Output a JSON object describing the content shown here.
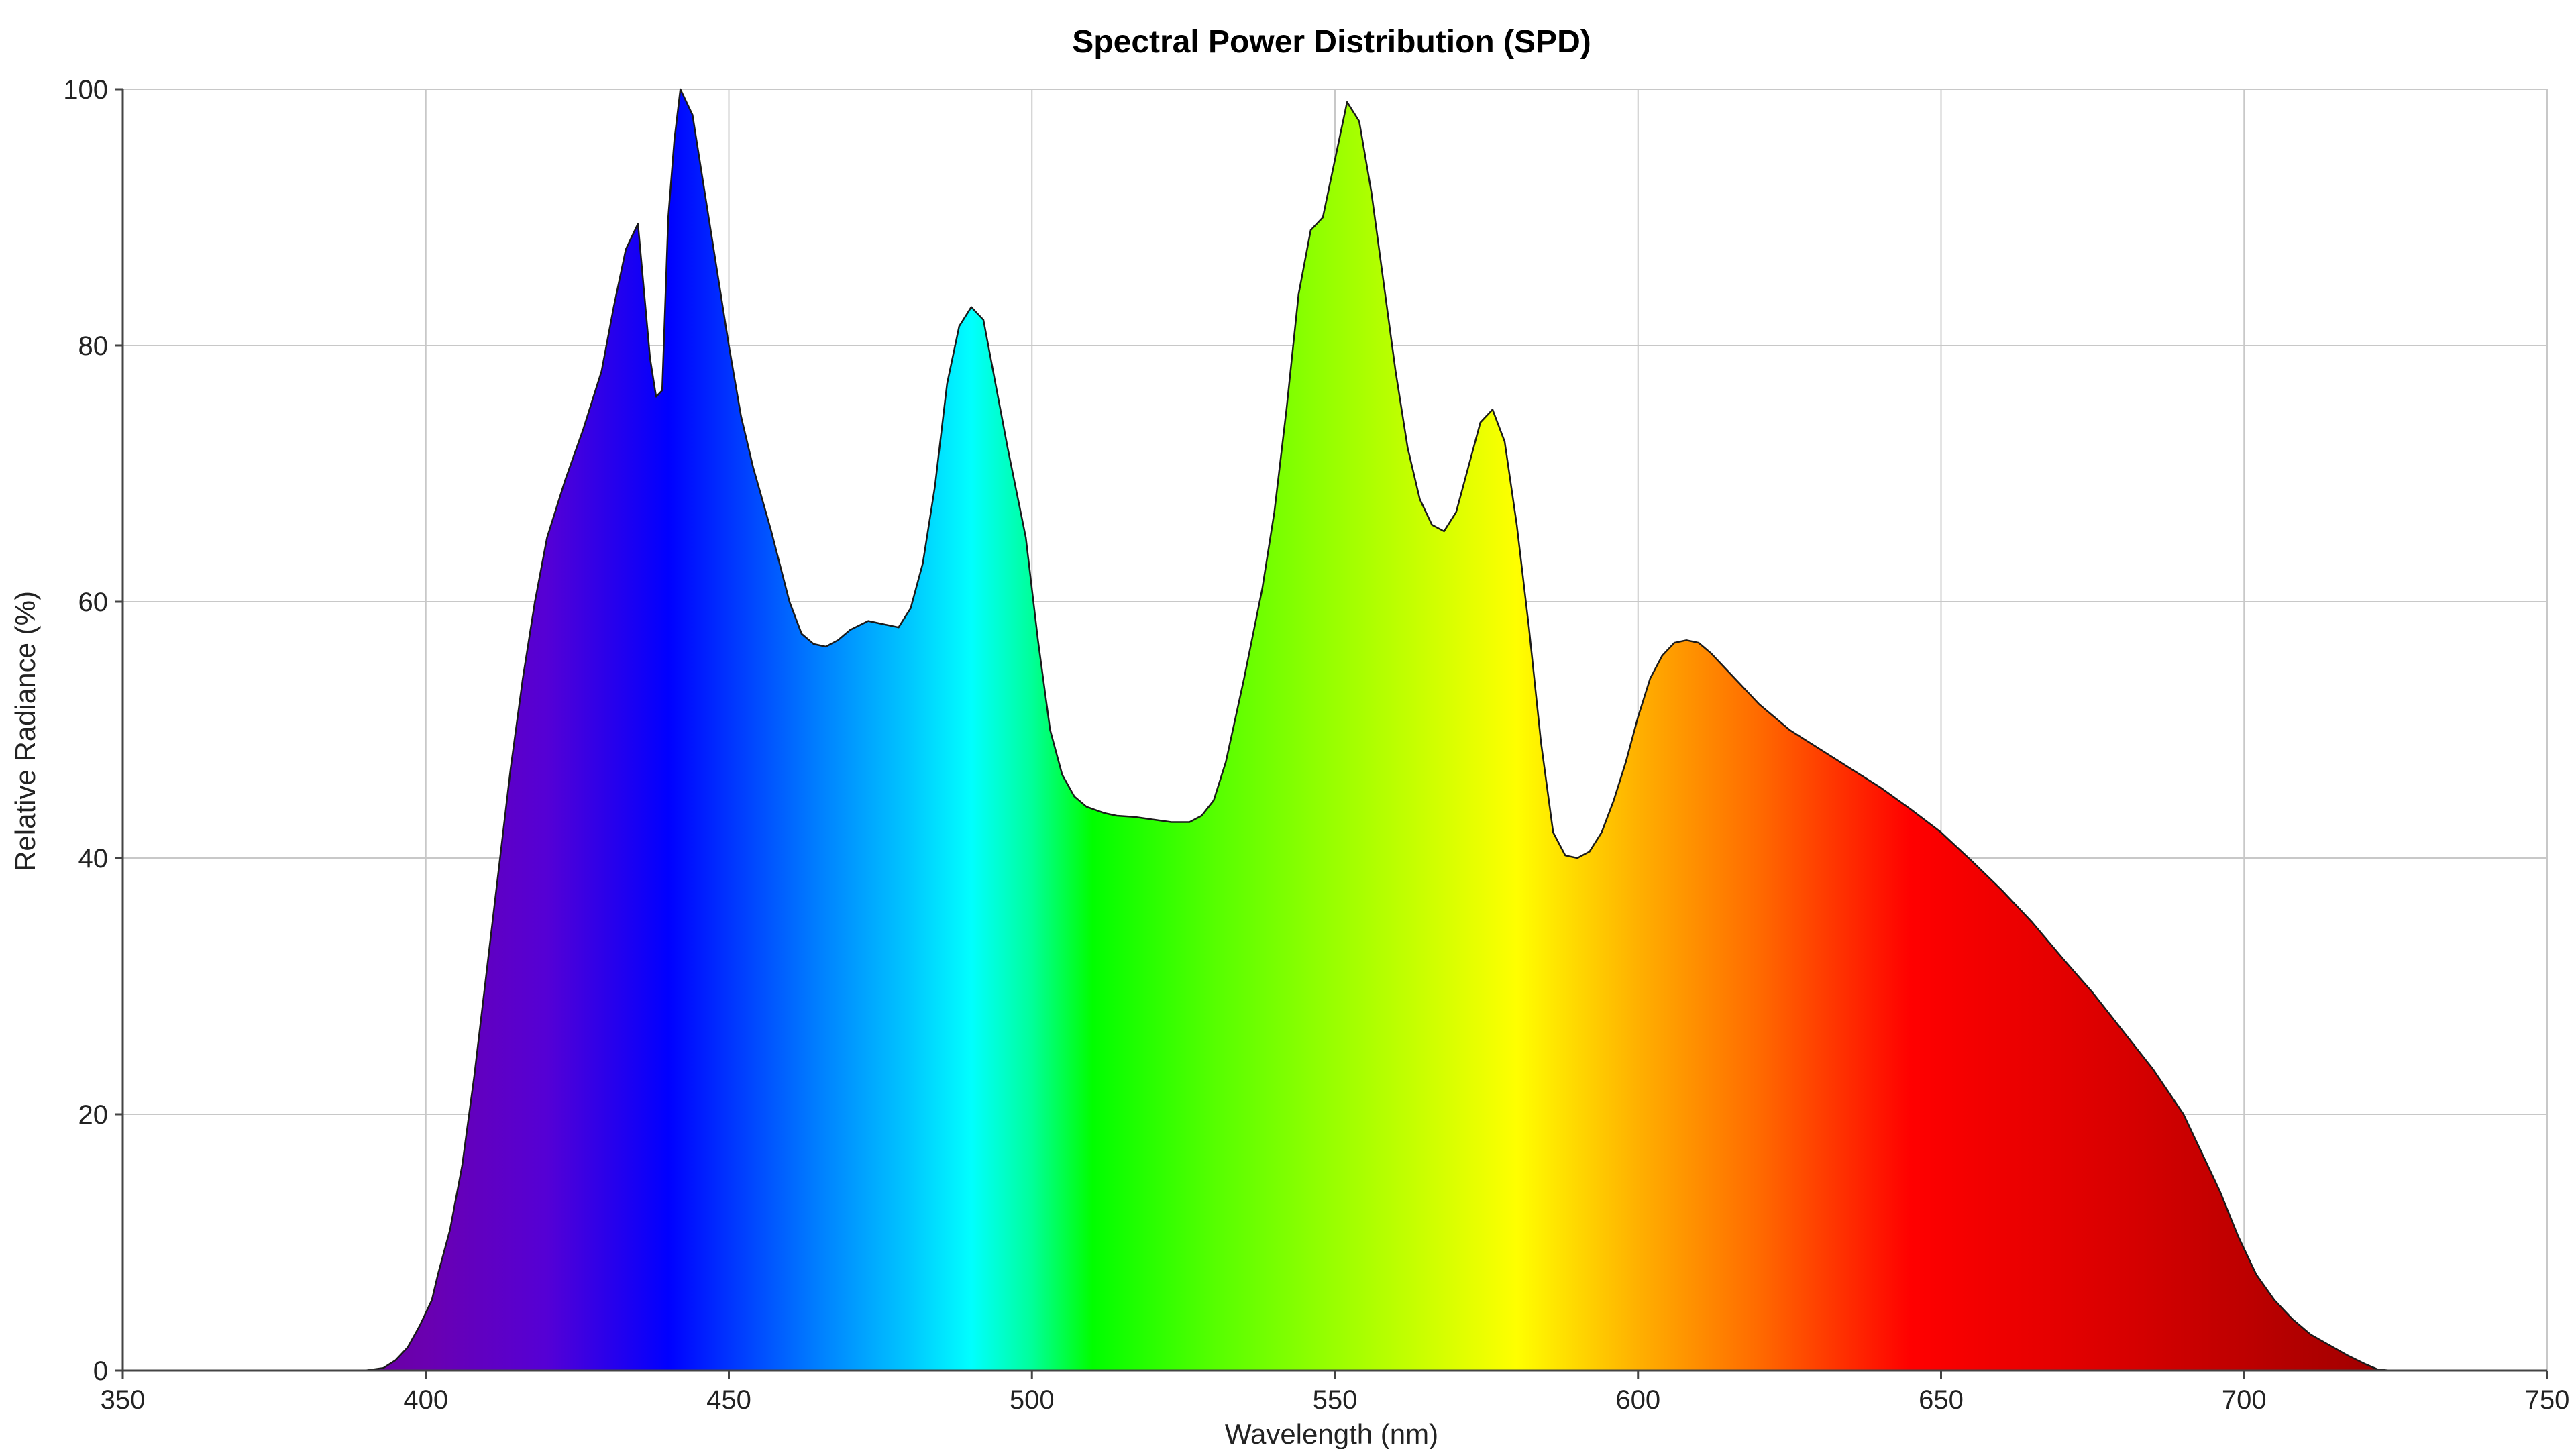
{
  "chart_data": {
    "type": "area",
    "title": "Spectral Power Distribution (SPD)",
    "xlabel": "Wavelength (nm)",
    "ylabel": "Relative Radiance (%)",
    "xlim": [
      350,
      750
    ],
    "ylim": [
      0,
      100
    ],
    "x_ticks": [
      "350",
      "400",
      "450",
      "500",
      "550",
      "600",
      "650",
      "700",
      "750"
    ],
    "y_ticks": [
      "0",
      "20",
      "40",
      "60",
      "80",
      "100"
    ],
    "grid": true,
    "fill": "spectral-gradient",
    "x": [
      350,
      380,
      390,
      393,
      395,
      397,
      399,
      401,
      402,
      404,
      406,
      408,
      410,
      412,
      414,
      416,
      418,
      420,
      423,
      426,
      429,
      431,
      433,
      435,
      437,
      438,
      439,
      440,
      441,
      442,
      444,
      446,
      448,
      450,
      452,
      454,
      457,
      460,
      462,
      464,
      466,
      468,
      470,
      473,
      475,
      478,
      480,
      482,
      484,
      486,
      488,
      490,
      492,
      494,
      496,
      499,
      501,
      503,
      505,
      507,
      509,
      512,
      514,
      517,
      520,
      523,
      526,
      528,
      530,
      532,
      535,
      538,
      540,
      542,
      544,
      546,
      548,
      550,
      552,
      554,
      556,
      558,
      560,
      562,
      564,
      566,
      568,
      570,
      572,
      574,
      576,
      578,
      580,
      582,
      584,
      586,
      588,
      590,
      592,
      594,
      596,
      598,
      600,
      602,
      604,
      606,
      608,
      610,
      612,
      614,
      616,
      620,
      625,
      630,
      635,
      640,
      645,
      650,
      655,
      660,
      665,
      670,
      675,
      680,
      685,
      690,
      693,
      696,
      699,
      702,
      705,
      708,
      711,
      714,
      717,
      720,
      722,
      724,
      750
    ],
    "y": [
      0,
      0,
      0,
      0.2,
      0.8,
      1.8,
      3.5,
      5.5,
      7.5,
      11,
      16,
      23,
      31,
      39,
      47,
      54,
      60,
      65,
      69.5,
      73.5,
      78,
      83,
      87.5,
      89.5,
      79,
      76,
      76.5,
      90,
      96,
      100,
      98,
      92,
      86,
      80,
      74.5,
      70.5,
      65.5,
      60,
      57.5,
      56.7,
      56.5,
      57,
      57.8,
      58.5,
      58.3,
      58,
      59.5,
      63,
      69,
      77,
      81.5,
      83,
      82,
      77,
      72,
      65,
      57,
      50,
      46.5,
      44.8,
      44,
      43.5,
      43.3,
      43.2,
      43,
      42.8,
      42.8,
      43.3,
      44.5,
      47.5,
      54,
      61,
      67,
      75,
      84,
      89,
      90,
      94.5,
      99,
      97.5,
      92,
      85,
      78,
      72,
      68,
      66,
      65.5,
      67,
      70.5,
      74,
      75,
      72.5,
      66,
      58,
      49,
      42,
      40.2,
      40,
      40.5,
      42,
      44.5,
      47.5,
      51,
      54,
      55.8,
      56.8,
      57,
      56.8,
      56,
      55,
      54,
      52,
      50,
      48.5,
      47,
      45.5,
      43.8,
      42,
      39.8,
      37.5,
      35,
      32.2,
      29.5,
      26.5,
      23.5,
      20,
      17,
      14,
      10.5,
      7.5,
      5.5,
      4,
      2.8,
      2,
      1.2,
      0.5,
      0.1,
      0,
      0
    ],
    "gradient_stops": [
      {
        "nm": 350,
        "color": "#6a0091"
      },
      {
        "nm": 380,
        "color": "#6a0091"
      },
      {
        "nm": 400,
        "color": "#6a00b0"
      },
      {
        "nm": 420,
        "color": "#5500d5"
      },
      {
        "nm": 440,
        "color": "#0000ff"
      },
      {
        "nm": 465,
        "color": "#0080ff"
      },
      {
        "nm": 480,
        "color": "#00c8ff"
      },
      {
        "nm": 490,
        "color": "#00ffff"
      },
      {
        "nm": 500,
        "color": "#00ff9a"
      },
      {
        "nm": 510,
        "color": "#00ff00"
      },
      {
        "nm": 530,
        "color": "#55ff00"
      },
      {
        "nm": 550,
        "color": "#9aff00"
      },
      {
        "nm": 565,
        "color": "#ccff00"
      },
      {
        "nm": 580,
        "color": "#ffff00"
      },
      {
        "nm": 600,
        "color": "#ffb000"
      },
      {
        "nm": 620,
        "color": "#ff6a00"
      },
      {
        "nm": 645,
        "color": "#ff0000"
      },
      {
        "nm": 680,
        "color": "#d80000"
      },
      {
        "nm": 720,
        "color": "#a30000"
      },
      {
        "nm": 750,
        "color": "#800000"
      }
    ],
    "colors": {
      "outline": "#1a1a1a",
      "grid": "#c8c8c8",
      "background": "#ffffff"
    }
  }
}
